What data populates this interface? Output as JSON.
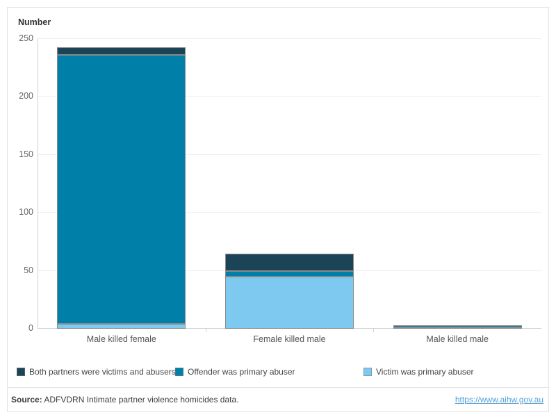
{
  "chart": {
    "axis_title": "Number"
  },
  "chart_data": {
    "type": "bar",
    "stacked": true,
    "title": "Number",
    "xlabel": "",
    "ylabel": "Number",
    "ylim": [
      0,
      250
    ],
    "ytick_step": 50,
    "y_tick_labels": [
      "0",
      "50",
      "100",
      "150",
      "200",
      "250"
    ],
    "grid": true,
    "legend_position": "bottom",
    "categories": [
      "Male killed female",
      "Female killed male",
      "Male killed male"
    ],
    "series": [
      {
        "name": "Victim was primary abuser",
        "color": "#7dc9f0",
        "values": [
          4,
          45,
          1
        ]
      },
      {
        "name": "Offender was primary abuser",
        "color": "#0080a8",
        "values": [
          232,
          5,
          2
        ]
      },
      {
        "name": "Both partners were victims and abusers",
        "color": "#1b4557",
        "values": [
          7,
          15,
          0
        ]
      }
    ]
  },
  "legend": {
    "items": [
      {
        "label": "Both partners were victims and abusers",
        "color": "#1b4557"
      },
      {
        "label": "Offender was primary abuser",
        "color": "#0080a8"
      },
      {
        "label": "Victim was primary abuser",
        "color": "#7dc9f0"
      }
    ]
  },
  "footer": {
    "source_bold": "Source:",
    "source_rest": " ADFVDRN Intimate partner violence homicides data.",
    "link_text": "https://www.aihw.gov.au"
  }
}
